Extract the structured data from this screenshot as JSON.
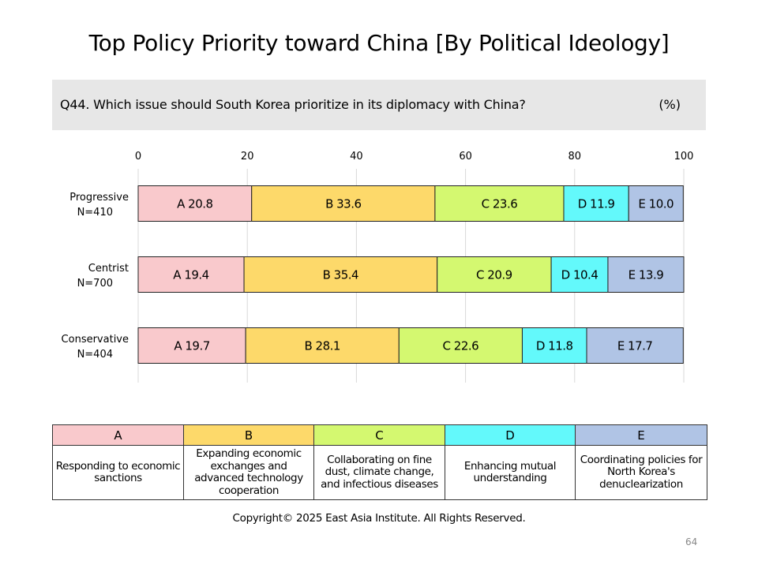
{
  "title": "Top Policy Priority toward China [By Political Ideology]",
  "question": "Q44. Which issue should South Korea prioritize in its diplomacy with China?",
  "unit": "(%)",
  "chart_data": {
    "type": "bar",
    "orientation": "horizontal",
    "stacked": true,
    "xlim": [
      0,
      100
    ],
    "x_ticks": [
      0,
      20,
      40,
      60,
      80,
      100
    ],
    "grid": "vertical lines at ticks",
    "categories": [
      {
        "label": "Progressive",
        "n": "N=410"
      },
      {
        "label": "Centrist",
        "n": "N=700"
      },
      {
        "label": "Conservative",
        "n": "N=404"
      }
    ],
    "series": [
      {
        "name": "A",
        "color": "#f9c9cc",
        "values": [
          20.8,
          19.4,
          19.7
        ]
      },
      {
        "name": "B",
        "color": "#fdd96a",
        "values": [
          33.6,
          35.4,
          28.1
        ]
      },
      {
        "name": "C",
        "color": "#d4f870",
        "values": [
          23.6,
          20.9,
          22.6
        ]
      },
      {
        "name": "D",
        "color": "#63f9fb",
        "values": [
          11.9,
          10.4,
          11.8
        ]
      },
      {
        "name": "E",
        "color": "#b0c4e5",
        "values": [
          10.0,
          13.9,
          17.7
        ]
      }
    ]
  },
  "legend": [
    {
      "key": "A",
      "description": "Responding to economic sanctions",
      "color": "#f9c9cc"
    },
    {
      "key": "B",
      "description": "Expanding economic exchanges and advanced technology cooperation",
      "color": "#fdd96a"
    },
    {
      "key": "C",
      "description": "Collaborating on fine dust, climate change, and infectious diseases",
      "color": "#d4f870"
    },
    {
      "key": "D",
      "description": "Enhancing mutual understanding",
      "color": "#63f9fb"
    },
    {
      "key": "E",
      "description": "Coordinating policies for North Korea's denuclearization",
      "color": "#b0c4e5"
    }
  ],
  "copyright": "Copyright© 2025 East Asia Institute. All Rights Reserved.",
  "page_number": "64"
}
